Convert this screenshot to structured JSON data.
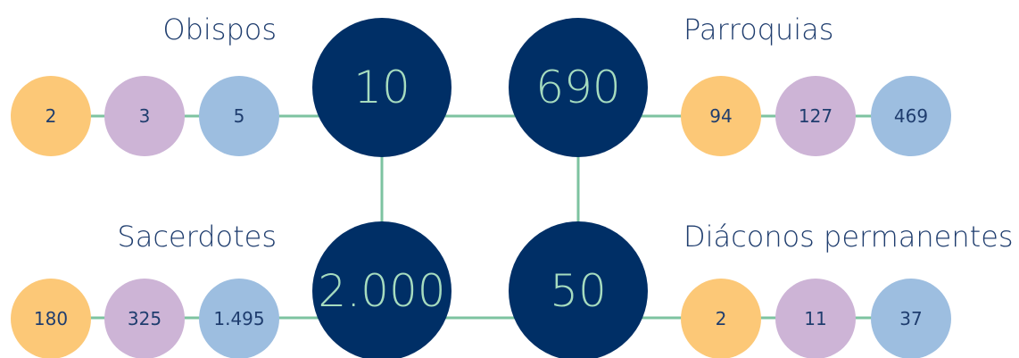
{
  "groups": [
    {
      "title": "Obispos",
      "total": "10",
      "items": [
        "2",
        "3",
        "5"
      ]
    },
    {
      "title": "Parroquias",
      "total": "690",
      "items": [
        "94",
        "127",
        "469"
      ]
    },
    {
      "title": "Sacerdotes",
      "total": "2.000",
      "items": [
        "180",
        "325",
        "1.495"
      ]
    },
    {
      "title": "Diáconos permanentes",
      "total": "50",
      "items": [
        "2",
        "11",
        "37"
      ]
    }
  ]
}
